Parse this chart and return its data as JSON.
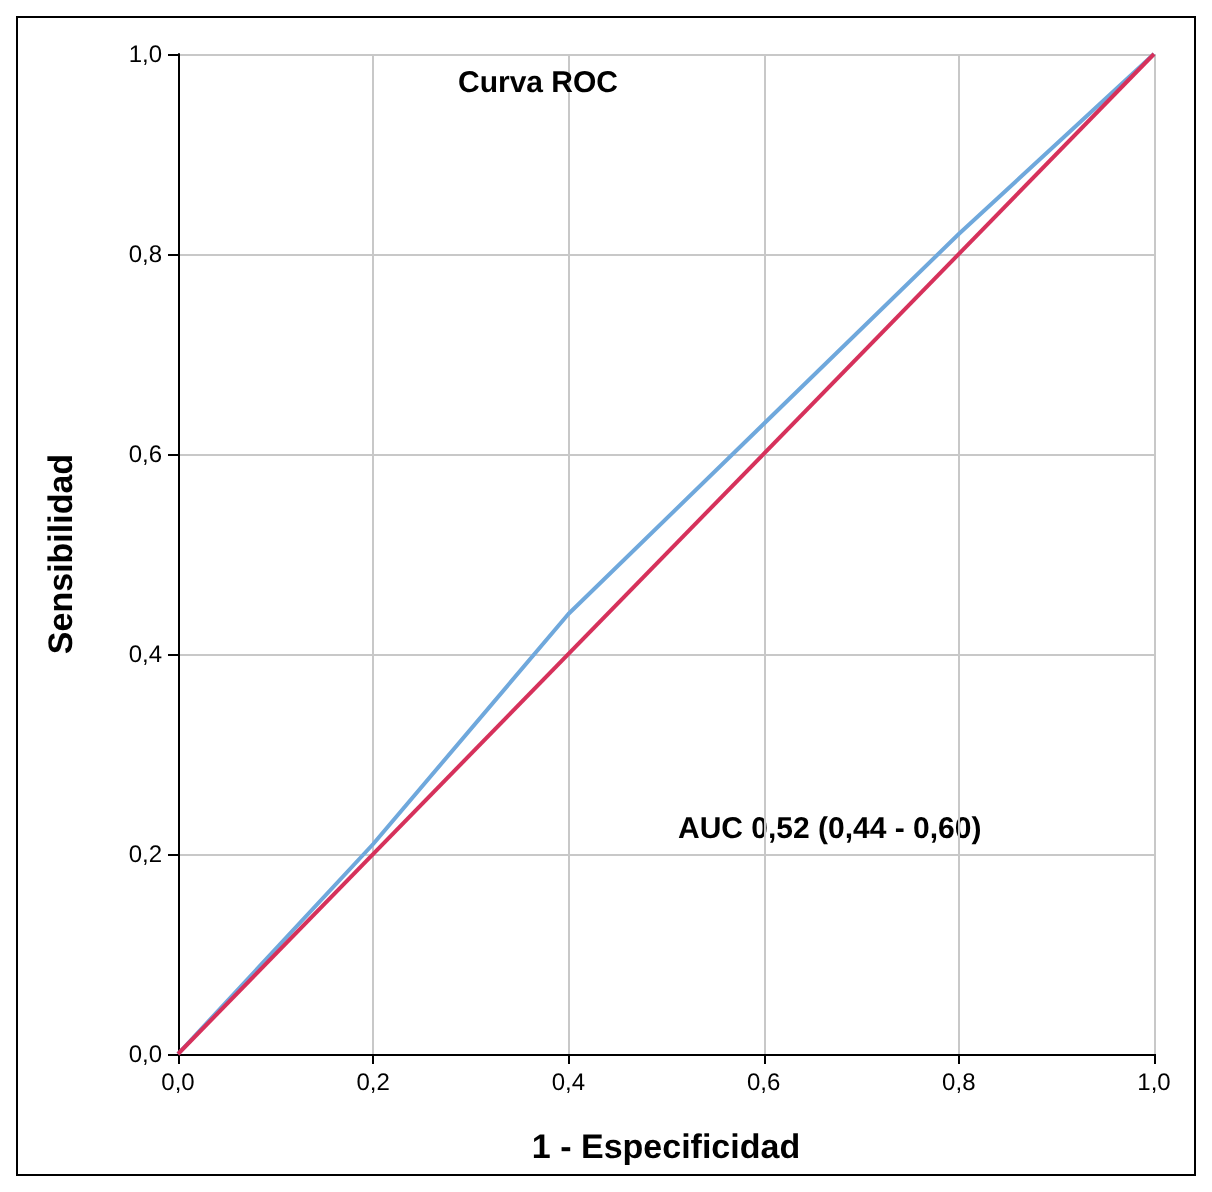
{
  "chart_data": {
    "type": "line",
    "title": "Curva ROC",
    "xlabel": "1 - Especificidad",
    "ylabel": "Sensibilidad",
    "annotations": [
      "AUC 0,52 (0,44 - 0,60)"
    ],
    "series": [
      {
        "color": "#6fa8dc",
        "x": [
          0,
          0.2,
          0.4,
          0.6,
          0.8,
          1
        ],
        "values": [
          0,
          0.21,
          0.44,
          0.63,
          0.82,
          1
        ]
      },
      {
        "color": "#d6315b",
        "x": [
          0,
          1
        ],
        "values": [
          0,
          1
        ]
      }
    ],
    "xlim": [
      0,
      1
    ],
    "ylim": [
      0,
      1
    ],
    "xticks": [
      {
        "value": 0,
        "label": "0,0"
      },
      {
        "value": 0.2,
        "label": "0,2"
      },
      {
        "value": 0.4,
        "label": "0,4"
      },
      {
        "value": 0.6,
        "label": "0,6"
      },
      {
        "value": 0.8,
        "label": "0,8"
      },
      {
        "value": 1,
        "label": "1,0"
      }
    ],
    "yticks": [
      {
        "value": 0,
        "label": "0,0"
      },
      {
        "value": 0.2,
        "label": "0,2"
      },
      {
        "value": 0.4,
        "label": "0,4"
      },
      {
        "value": 0.6,
        "label": "0,6"
      },
      {
        "value": 0.8,
        "label": "0,8"
      },
      {
        "value": 1,
        "label": "1,0"
      }
    ],
    "grid": true,
    "marker": "none",
    "line_style": "solid"
  }
}
